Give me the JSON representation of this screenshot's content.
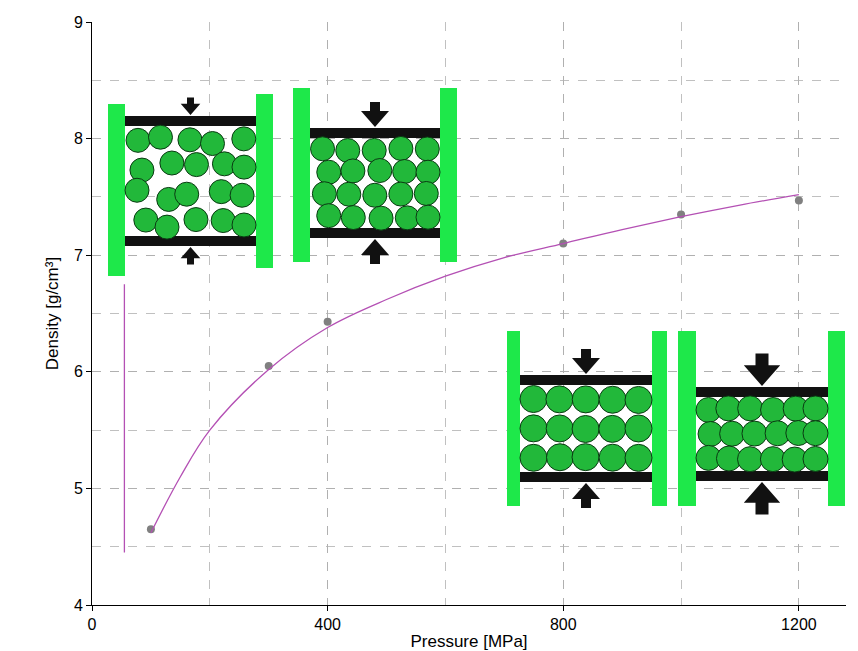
{
  "chart_data": {
    "type": "scatter",
    "x_label": "Pressure [MPa]",
    "y_label": "Density [g/cm³]",
    "xlim": [
      0,
      1280
    ],
    "ylim": [
      4,
      9
    ],
    "xticks": [
      0,
      400,
      800,
      1200
    ],
    "yticks": [
      4,
      5,
      6,
      7,
      8,
      9
    ],
    "grid": true,
    "series": [
      {
        "type": "scatter",
        "marker": "circle",
        "color": "#808080",
        "x": [
          100,
          300,
          400,
          800,
          1000,
          1200
        ],
        "values": [
          4.65,
          6.05,
          6.43,
          7.1,
          7.35,
          7.47
        ]
      },
      {
        "type": "line",
        "color": "#b450b4",
        "line_style": "solid",
        "x": [
          100,
          150,
          200,
          300,
          400,
          500,
          600,
          700,
          800,
          900,
          1000,
          1100,
          1200
        ],
        "values": [
          4.62,
          5.1,
          5.5,
          6.02,
          6.38,
          6.62,
          6.82,
          6.98,
          7.1,
          7.22,
          7.33,
          7.43,
          7.52
        ]
      },
      {
        "type": "line",
        "color": "#b450b4",
        "line_style": "solid",
        "x": [
          55,
          55
        ],
        "values": [
          4.45,
          6.75
        ]
      }
    ]
  }
}
